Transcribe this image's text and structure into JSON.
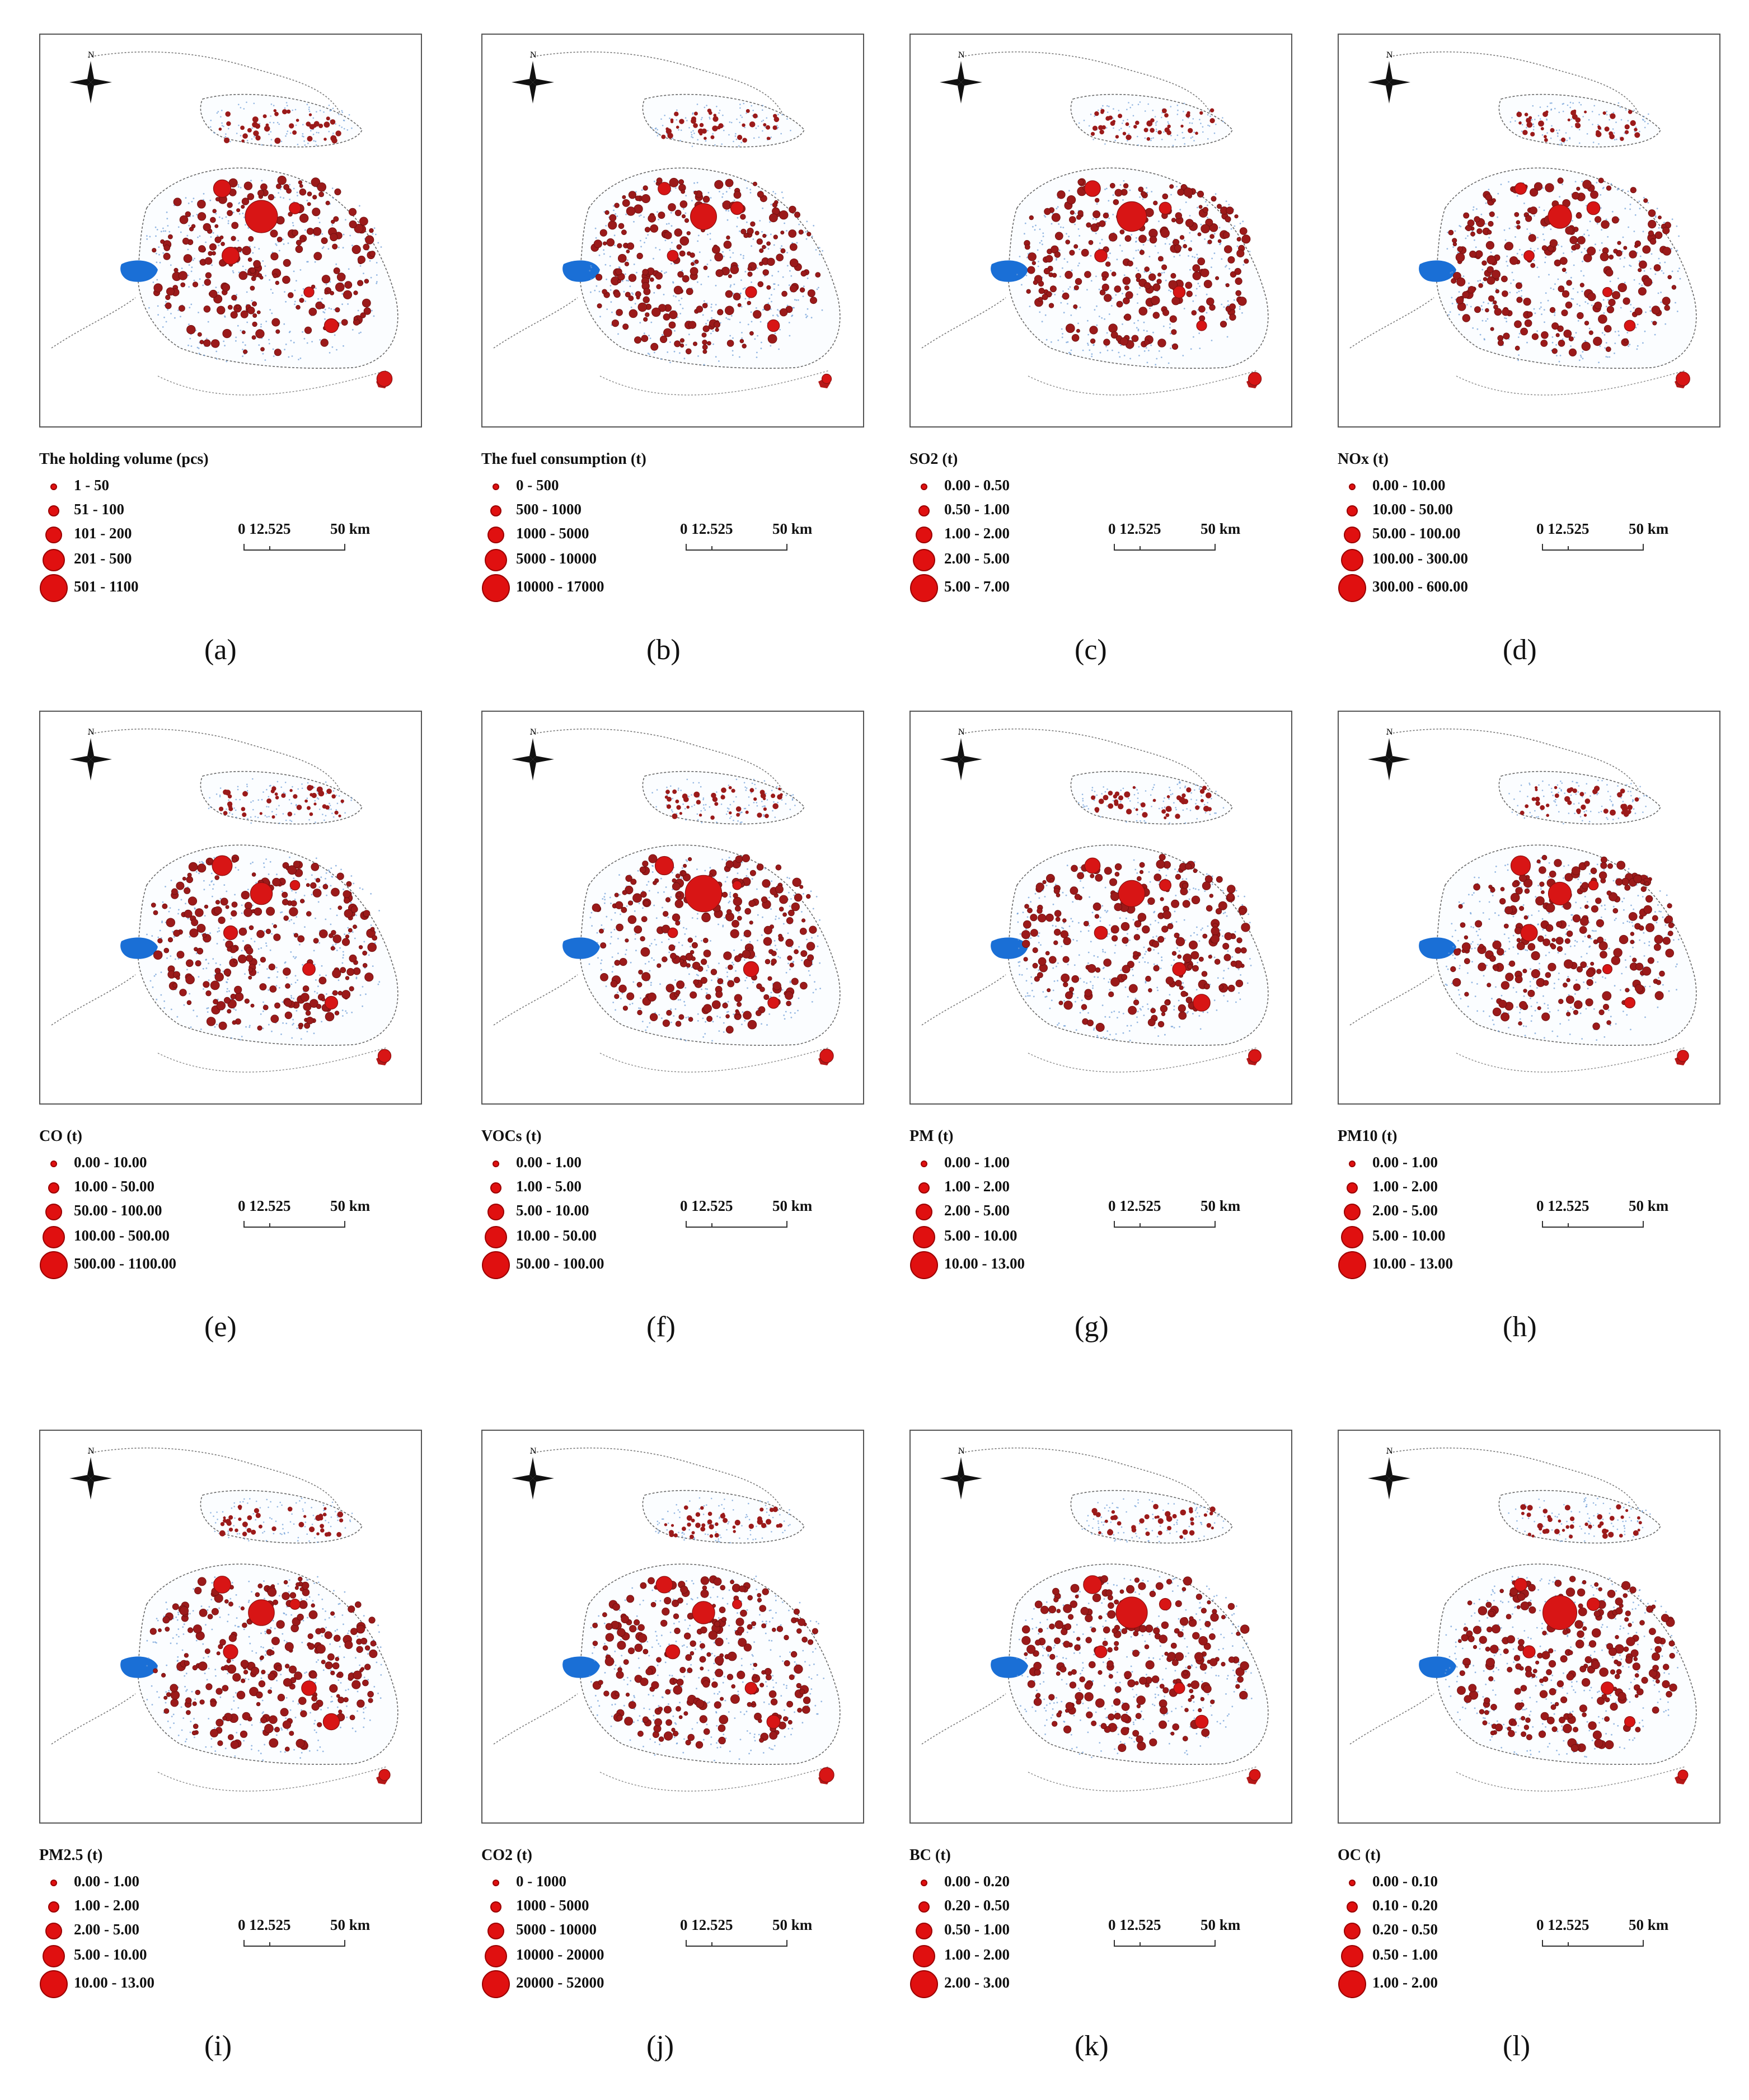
{
  "scale_bar": {
    "label": "0 12.525",
    "distance": "50 km"
  },
  "map": {
    "north_label": "N",
    "point_color": "#e01010",
    "point_outline": "#8a1010",
    "water_color": "#1a6fd6"
  },
  "panels": [
    {
      "caption": "(a)",
      "legend_title": "The holding volume  (pcs)",
      "classes": [
        "1 - 50",
        "51 - 100",
        "101 - 200",
        "201 - 500",
        "501 - 1100"
      ]
    },
    {
      "caption": "(b)",
      "legend_title": "The fuel consumption  (t)",
      "classes": [
        "0 - 500",
        "500 - 1000",
        "1000 - 5000",
        "5000 - 10000",
        "10000 - 17000"
      ]
    },
    {
      "caption": "(c)",
      "legend_title": "SO2  (t)",
      "classes": [
        "0.00 - 0.50",
        "0.50 - 1.00",
        "1.00 - 2.00",
        "2.00 - 5.00",
        "5.00 - 7.00"
      ]
    },
    {
      "caption": "(d)",
      "legend_title": "NOx  (t)",
      "classes": [
        "0.00 - 10.00",
        "10.00 - 50.00",
        "50.00 - 100.00",
        "100.00 - 300.00",
        "300.00 - 600.00"
      ]
    },
    {
      "caption": "(e)",
      "legend_title": "CO  (t)",
      "classes": [
        "0.00 - 10.00",
        "10.00 - 50.00",
        "50.00 - 100.00",
        "100.00 - 500.00",
        "500.00 - 1100.00"
      ]
    },
    {
      "caption": "(f)",
      "legend_title": "VOCs  (t)",
      "classes": [
        "0.00 - 1.00",
        "1.00 - 5.00",
        "5.00 - 10.00",
        "10.00 - 50.00",
        "50.00 - 100.00"
      ]
    },
    {
      "caption": "(g)",
      "legend_title": "PM  (t)",
      "classes": [
        "0.00 - 1.00",
        "1.00 - 2.00",
        "2.00 - 5.00",
        "5.00 - 10.00",
        "10.00 - 13.00"
      ]
    },
    {
      "caption": "(h)",
      "legend_title": "PM10  (t)",
      "classes": [
        "0.00 - 1.00",
        "1.00 - 2.00",
        "2.00 - 5.00",
        "5.00 - 10.00",
        "10.00 - 13.00"
      ]
    },
    {
      "caption": "(i)",
      "legend_title": "PM2.5  (t)",
      "classes": [
        "0.00 - 1.00",
        "1.00 - 2.00",
        "2.00 - 5.00",
        "5.00 - 10.00",
        "10.00 - 13.00"
      ]
    },
    {
      "caption": "(j)",
      "legend_title": "CO2  (t)",
      "classes": [
        "0 - 1000",
        "1000 - 5000",
        "5000 - 10000",
        "10000 - 20000",
        "20000 - 52000"
      ]
    },
    {
      "caption": "(k)",
      "legend_title": "BC  (t)",
      "classes": [
        "0.00 - 0.20",
        "0.20 - 0.50",
        "0.50 - 1.00",
        "1.00 - 2.00",
        "2.00 - 3.00"
      ]
    },
    {
      "caption": "(l)",
      "legend_title": "OC  (t)",
      "classes": [
        "0.00 - 0.10",
        "0.10 - 0.20",
        "0.20 - 0.50",
        "0.50 - 1.00",
        "1.00 - 2.00"
      ]
    }
  ]
}
